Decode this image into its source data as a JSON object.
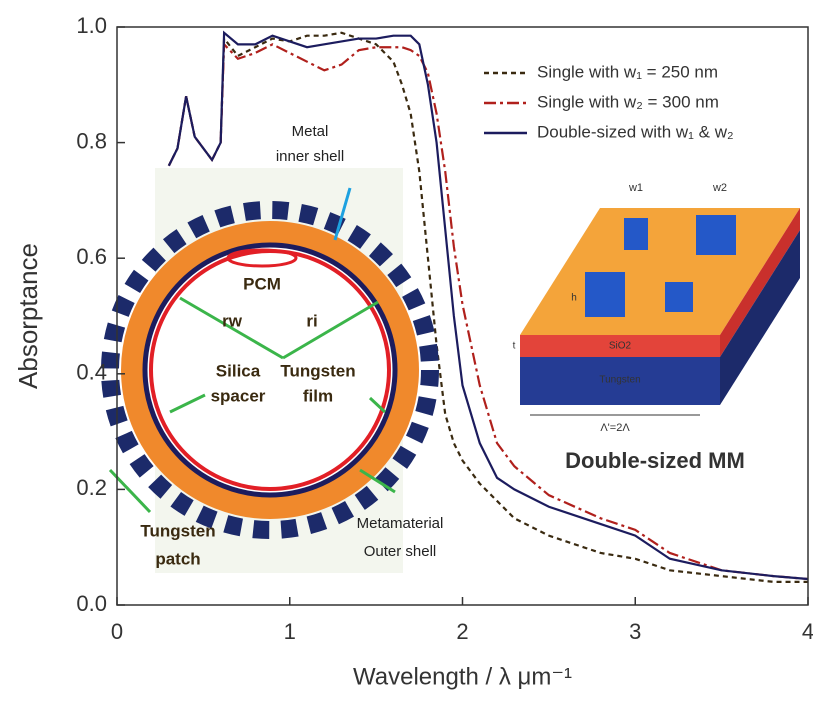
{
  "chart_data": {
    "type": "line",
    "xlabel": "Wavelength / λ μm⁻¹",
    "ylabel": "Absorptance",
    "x": [
      0.3,
      0.35,
      0.4,
      0.45,
      0.5,
      0.55,
      0.6,
      0.62,
      0.7,
      0.8,
      0.9,
      1.0,
      1.1,
      1.2,
      1.3,
      1.4,
      1.5,
      1.6,
      1.65,
      1.7,
      1.75,
      1.8,
      1.85,
      1.9,
      1.95,
      2.0,
      2.1,
      2.2,
      2.3,
      2.5,
      2.8,
      3.0,
      3.2,
      3.5,
      3.8,
      4.0
    ],
    "series": [
      {
        "name": "Single with w₁ = 250 nm",
        "color": "#3a2a10",
        "dash": "5,4",
        "values": [
          0.76,
          0.79,
          0.88,
          0.81,
          0.79,
          0.77,
          0.8,
          0.98,
          0.95,
          0.965,
          0.98,
          0.975,
          0.985,
          0.985,
          0.99,
          0.98,
          0.97,
          0.94,
          0.9,
          0.85,
          0.75,
          0.6,
          0.45,
          0.33,
          0.28,
          0.25,
          0.21,
          0.18,
          0.15,
          0.12,
          0.09,
          0.08,
          0.06,
          0.05,
          0.04,
          0.04
        ]
      },
      {
        "name": "Single with w₂ = 300 nm",
        "color": "#b0201c",
        "dash": "12,4,3,4",
        "values": [
          0.76,
          0.79,
          0.88,
          0.81,
          0.79,
          0.77,
          0.8,
          0.97,
          0.945,
          0.955,
          0.97,
          0.955,
          0.94,
          0.925,
          0.935,
          0.96,
          0.965,
          0.965,
          0.965,
          0.96,
          0.95,
          0.92,
          0.85,
          0.75,
          0.62,
          0.52,
          0.38,
          0.28,
          0.24,
          0.19,
          0.15,
          0.13,
          0.09,
          0.06,
          0.05,
          0.045
        ]
      },
      {
        "name": "Double-sized with w₁ & w₂",
        "color": "#1c1c5e",
        "dash": "none",
        "values": [
          0.76,
          0.79,
          0.88,
          0.81,
          0.79,
          0.77,
          0.8,
          0.99,
          0.97,
          0.97,
          0.985,
          0.975,
          0.965,
          0.97,
          0.975,
          0.98,
          0.98,
          0.985,
          0.985,
          0.985,
          0.97,
          0.9,
          0.8,
          0.65,
          0.5,
          0.38,
          0.28,
          0.22,
          0.2,
          0.17,
          0.14,
          0.12,
          0.08,
          0.06,
          0.05,
          0.045
        ]
      }
    ],
    "xlim": [
      0,
      4
    ],
    "xticks": [
      0,
      1,
      2,
      3,
      4
    ],
    "ylim": [
      0,
      1
    ],
    "yticks": [
      {
        "value": 0,
        "label": "0.0"
      },
      0.2,
      0.4,
      0.6,
      0.8,
      {
        "value": 1,
        "label": "1.0"
      }
    ],
    "shell_labels": [
      "Metal",
      "inner shell",
      "PCM",
      "rw",
      "ri",
      "Silica",
      "spacer",
      "Tungsten",
      "film",
      "Tungsten",
      "patch",
      "Metamaterial",
      "Outer shell"
    ],
    "mm_labels": [
      "w1",
      "w2",
      "h",
      "t",
      "SiO2",
      "Tungsten",
      "Λ'=2Λ",
      "Double-sized MM"
    ]
  }
}
